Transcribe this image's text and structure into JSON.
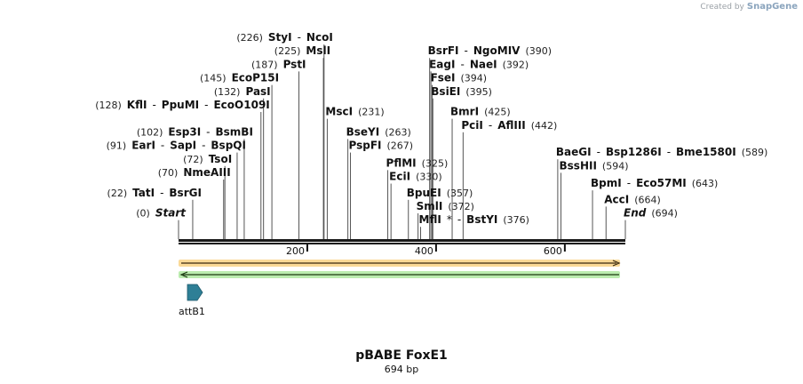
{
  "credit": {
    "prefix": "Created by",
    "brand": "SnapGene"
  },
  "plasmid": {
    "name": "pBABE FoxE1",
    "size_label": "694 bp",
    "length": 694
  },
  "axis": {
    "ticks": [
      200,
      400,
      600
    ]
  },
  "colors": {
    "backbone": "#1a1a1a",
    "orange_arrow": "#f5b942",
    "green_arrow": "#8ee07a",
    "att_feature": "#2e7f96"
  },
  "feature": {
    "name": "attB1",
    "start": 1,
    "end": 24
  },
  "sites": [
    {
      "row": 0,
      "pos": 226,
      "parts": [
        {
          "name": "(226)",
          "type": "pos"
        },
        {
          "name": "StyI",
          "type": "name"
        },
        {
          "name": "-",
          "type": "sep"
        },
        {
          "name": "NcoI",
          "type": "name"
        }
      ],
      "positions": [
        226,
        226
      ]
    },
    {
      "row": 1,
      "pos": 225,
      "parts": [
        {
          "name": "(225)",
          "type": "pos"
        },
        {
          "name": "MslI",
          "type": "name"
        }
      ],
      "positions": [
        225
      ]
    },
    {
      "row": 2,
      "pos": 187,
      "parts": [
        {
          "name": "(187)",
          "type": "pos"
        },
        {
          "name": "PstI",
          "type": "name"
        }
      ],
      "positions": [
        187
      ]
    },
    {
      "row": 3,
      "pos": 145,
      "parts": [
        {
          "name": "(145)",
          "type": "pos"
        },
        {
          "name": "EcoP15I",
          "type": "name"
        }
      ],
      "positions": [
        145
      ]
    },
    {
      "row": 4,
      "pos": 132,
      "parts": [
        {
          "name": "(132)",
          "type": "pos"
        },
        {
          "name": "PasI",
          "type": "name"
        }
      ],
      "positions": [
        132
      ]
    },
    {
      "row": 5,
      "pos": 128,
      "parts": [
        {
          "name": "(128)",
          "type": "pos"
        },
        {
          "name": "KflI",
          "type": "name"
        },
        {
          "name": "-",
          "type": "sep"
        },
        {
          "name": "PpuMI",
          "type": "name"
        },
        {
          "name": "-",
          "type": "sep"
        },
        {
          "name": "EcoO109I",
          "type": "name"
        }
      ],
      "positions": [
        128
      ]
    },
    {
      "row": 7,
      "pos": 102,
      "parts": [
        {
          "name": "(102)",
          "type": "pos"
        },
        {
          "name": "Esp3I",
          "type": "name"
        },
        {
          "name": "-",
          "type": "sep"
        },
        {
          "name": "BsmBI",
          "type": "name"
        }
      ],
      "positions": [
        102
      ]
    },
    {
      "row": 8,
      "pos": 91,
      "parts": [
        {
          "name": "(91)",
          "type": "pos"
        },
        {
          "name": "EarI",
          "type": "name"
        },
        {
          "name": "-",
          "type": "sep"
        },
        {
          "name": "SapI",
          "type": "name"
        },
        {
          "name": "-",
          "type": "sep"
        },
        {
          "name": "BspQI",
          "type": "name"
        }
      ],
      "positions": [
        91
      ]
    },
    {
      "row": 9,
      "pos": 72,
      "parts": [
        {
          "name": "(72)",
          "type": "pos"
        },
        {
          "name": "TsoI",
          "type": "name"
        }
      ],
      "positions": [
        72
      ]
    },
    {
      "row": 10,
      "pos": 70,
      "parts": [
        {
          "name": "(70)",
          "type": "pos"
        },
        {
          "name": "NmeAIII",
          "type": "name"
        }
      ],
      "positions": [
        70
      ]
    },
    {
      "row": 11.5,
      "pos": 22,
      "parts": [
        {
          "name": "(22)",
          "type": "pos"
        },
        {
          "name": "TatI",
          "type": "name"
        },
        {
          "name": "-",
          "type": "sep"
        },
        {
          "name": "BsrGI",
          "type": "name"
        }
      ],
      "positions": [
        22
      ]
    },
    {
      "row": 13,
      "pos": 0,
      "parts": [
        {
          "name": "(0)",
          "type": "pos"
        },
        {
          "name": "Start",
          "type": "ital"
        }
      ],
      "positions": [
        0
      ]
    },
    {
      "row": 5.5,
      "pos": 231,
      "side": "right",
      "parts": [
        {
          "name": "MscI",
          "type": "name"
        },
        {
          "name": "(231)",
          "type": "pos"
        }
      ],
      "positions": [
        231
      ]
    },
    {
      "row": 7,
      "pos": 263,
      "side": "right",
      "parts": [
        {
          "name": "BseYI",
          "type": "name"
        },
        {
          "name": "(263)",
          "type": "pos"
        }
      ],
      "positions": [
        263
      ]
    },
    {
      "row": 8,
      "pos": 267,
      "side": "right",
      "parts": [
        {
          "name": "PspFI",
          "type": "name"
        },
        {
          "name": "(267)",
          "type": "pos"
        }
      ],
      "positions": [
        267
      ]
    },
    {
      "row": 9.3,
      "pos": 325,
      "side": "right",
      "parts": [
        {
          "name": "PflMI",
          "type": "name"
        },
        {
          "name": "(325)",
          "type": "pos"
        }
      ],
      "positions": [
        325
      ]
    },
    {
      "row": 10.3,
      "pos": 330,
      "side": "right",
      "parts": [
        {
          "name": "EciI",
          "type": "name"
        },
        {
          "name": "(330)",
          "type": "pos"
        }
      ],
      "positions": [
        330
      ]
    },
    {
      "row": 11.5,
      "pos": 357,
      "side": "right",
      "parts": [
        {
          "name": "BpuEI",
          "type": "name"
        },
        {
          "name": "(357)",
          "type": "pos"
        }
      ],
      "positions": [
        357
      ]
    },
    {
      "row": 12.5,
      "pos": 372,
      "side": "right",
      "parts": [
        {
          "name": "SmlI",
          "type": "name"
        },
        {
          "name": "(372)",
          "type": "pos"
        }
      ],
      "positions": [
        372
      ]
    },
    {
      "row": 13.5,
      "pos": 376,
      "side": "right",
      "parts": [
        {
          "name": "MflI",
          "type": "name"
        },
        {
          "name": "*",
          "type": "sep"
        },
        {
          "name": "-",
          "type": "sep"
        },
        {
          "name": "BstYI",
          "type": "name"
        },
        {
          "name": "(376)",
          "type": "pos"
        }
      ],
      "positions": [
        376
      ]
    },
    {
      "row": 1,
      "pos": 390,
      "side": "right",
      "parts": [
        {
          "name": "BsrFI",
          "type": "name"
        },
        {
          "name": "-",
          "type": "sep"
        },
        {
          "name": "NgoMIV",
          "type": "name"
        },
        {
          "name": "(390)",
          "type": "pos"
        }
      ],
      "positions": [
        390
      ]
    },
    {
      "row": 2,
      "pos": 392,
      "side": "right",
      "parts": [
        {
          "name": "EagI",
          "type": "name"
        },
        {
          "name": "-",
          "type": "sep"
        },
        {
          "name": "NaeI",
          "type": "name"
        },
        {
          "name": "(392)",
          "type": "pos"
        }
      ],
      "positions": [
        392
      ]
    },
    {
      "row": 3,
      "pos": 394,
      "side": "right",
      "parts": [
        {
          "name": "FseI",
          "type": "name"
        },
        {
          "name": "(394)",
          "type": "pos"
        }
      ],
      "positions": [
        394
      ]
    },
    {
      "row": 4,
      "pos": 395,
      "side": "right",
      "parts": [
        {
          "name": "BsiEI",
          "type": "name"
        },
        {
          "name": "(395)",
          "type": "pos"
        }
      ],
      "positions": [
        395
      ]
    },
    {
      "row": 5.5,
      "pos": 425,
      "side": "right",
      "parts": [
        {
          "name": "BmrI",
          "type": "name"
        },
        {
          "name": "(425)",
          "type": "pos"
        }
      ],
      "positions": [
        425
      ]
    },
    {
      "row": 6.5,
      "pos": 442,
      "side": "right",
      "parts": [
        {
          "name": "PciI",
          "type": "name"
        },
        {
          "name": "-",
          "type": "sep"
        },
        {
          "name": "AflIII",
          "type": "name"
        },
        {
          "name": "(442)",
          "type": "pos"
        }
      ],
      "positions": [
        442
      ]
    },
    {
      "row": 8.5,
      "pos": 589,
      "side": "right",
      "parts": [
        {
          "name": "BaeGI",
          "type": "name"
        },
        {
          "name": "-",
          "type": "sep"
        },
        {
          "name": "Bsp1286I",
          "type": "name"
        },
        {
          "name": "-",
          "type": "sep"
        },
        {
          "name": "Bme1580I",
          "type": "name"
        },
        {
          "name": "(589)",
          "type": "pos"
        }
      ],
      "positions": [
        589
      ]
    },
    {
      "row": 9.5,
      "pos": 594,
      "side": "right",
      "parts": [
        {
          "name": "BssHII",
          "type": "name"
        },
        {
          "name": "(594)",
          "type": "pos"
        }
      ],
      "positions": [
        594
      ]
    },
    {
      "row": 10.8,
      "pos": 643,
      "side": "right",
      "parts": [
        {
          "name": "BpmI",
          "type": "name"
        },
        {
          "name": "-",
          "type": "sep"
        },
        {
          "name": "Eco57MI",
          "type": "name"
        },
        {
          "name": "(643)",
          "type": "pos"
        }
      ],
      "positions": [
        643
      ]
    },
    {
      "row": 12,
      "pos": 664,
      "side": "right",
      "parts": [
        {
          "name": "AccI",
          "type": "name"
        },
        {
          "name": "(664)",
          "type": "pos"
        }
      ],
      "positions": [
        664
      ]
    },
    {
      "row": 13,
      "pos": 694,
      "side": "right",
      "parts": [
        {
          "name": "End",
          "type": "ital"
        },
        {
          "name": "(694)",
          "type": "pos"
        }
      ],
      "positions": [
        694
      ]
    }
  ]
}
